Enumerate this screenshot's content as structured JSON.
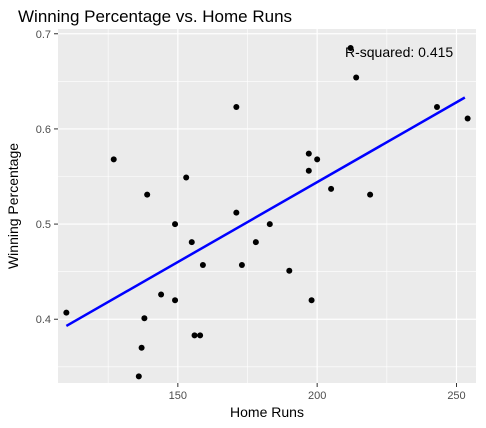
{
  "chart_data": {
    "type": "scatter",
    "title": "Winning Percentage vs. Home Runs",
    "xlabel": "Home Runs",
    "ylabel": "Winning Percentage",
    "xlim": [
      107,
      257
    ],
    "ylim": [
      0.333,
      0.705
    ],
    "x_ticks": [
      150,
      200,
      250
    ],
    "y_ticks": [
      0.4,
      0.5,
      0.6,
      0.7
    ],
    "x_tick_labels": [
      "150",
      "200",
      "250"
    ],
    "y_tick_labels": [
      "0.4",
      "0.5",
      "0.6",
      "0.7"
    ],
    "points": [
      {
        "x": 110,
        "y": 0.407
      },
      {
        "x": 127,
        "y": 0.568
      },
      {
        "x": 136,
        "y": 0.34
      },
      {
        "x": 137,
        "y": 0.37
      },
      {
        "x": 138,
        "y": 0.401
      },
      {
        "x": 139,
        "y": 0.531
      },
      {
        "x": 144,
        "y": 0.426
      },
      {
        "x": 149,
        "y": 0.42
      },
      {
        "x": 149,
        "y": 0.5
      },
      {
        "x": 153,
        "y": 0.549
      },
      {
        "x": 155,
        "y": 0.481
      },
      {
        "x": 156,
        "y": 0.383
      },
      {
        "x": 158,
        "y": 0.383
      },
      {
        "x": 159,
        "y": 0.457
      },
      {
        "x": 171,
        "y": 0.623
      },
      {
        "x": 171,
        "y": 0.512
      },
      {
        "x": 173,
        "y": 0.457
      },
      {
        "x": 178,
        "y": 0.481
      },
      {
        "x": 183,
        "y": 0.5
      },
      {
        "x": 190,
        "y": 0.451
      },
      {
        "x": 197,
        "y": 0.574
      },
      {
        "x": 197,
        "y": 0.556
      },
      {
        "x": 198,
        "y": 0.42
      },
      {
        "x": 200,
        "y": 0.568
      },
      {
        "x": 205,
        "y": 0.537
      },
      {
        "x": 212,
        "y": 0.685
      },
      {
        "x": 214,
        "y": 0.654
      },
      {
        "x": 219,
        "y": 0.531
      },
      {
        "x": 243,
        "y": 0.623
      },
      {
        "x": 254,
        "y": 0.611
      }
    ],
    "trendline": {
      "x": [
        110,
        253
      ],
      "y": [
        0.393,
        0.633
      ]
    },
    "annotation": "R-squared: 0.415",
    "colors": {
      "panel": "#ebebeb",
      "grid": "#ffffff",
      "points": "#000000",
      "trendline": "#0000ff"
    },
    "grid": true,
    "legend": false
  }
}
